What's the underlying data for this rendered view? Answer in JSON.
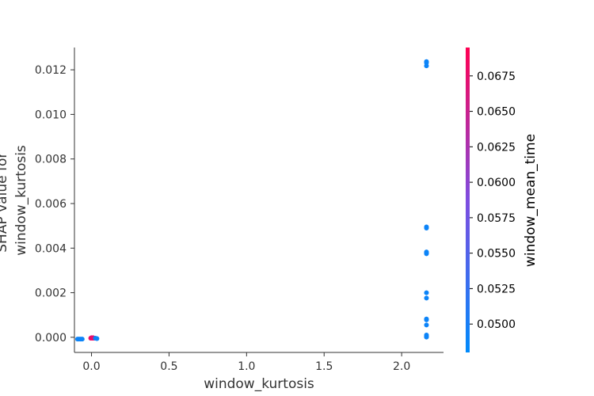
{
  "chart_data": {
    "type": "scatter",
    "xlabel": "window_kurtosis",
    "ylabel_lines": [
      "SHAP value for",
      "window_kurtosis"
    ],
    "xlim": [
      -0.11,
      2.27
    ],
    "ylim": [
      -0.00068,
      0.013
    ],
    "x_ticks": [
      0.0,
      0.5,
      1.0,
      1.5,
      2.0
    ],
    "x_tick_labels": [
      "0.0",
      "0.5",
      "1.0",
      "1.5",
      "2.0"
    ],
    "y_ticks": [
      0.0,
      0.002,
      0.004,
      0.006,
      0.008,
      0.01,
      0.012
    ],
    "y_tick_labels": [
      "0.000",
      "0.002",
      "0.004",
      "0.006",
      "0.008",
      "0.010",
      "0.012"
    ],
    "colorbar": {
      "label": "window_mean_time",
      "min": 0.048,
      "max": 0.0695,
      "ticks": [
        0.05,
        0.0525,
        0.055,
        0.0575,
        0.06,
        0.0625,
        0.065,
        0.0675
      ],
      "tick_labels": [
        "0.0500",
        "0.0525",
        "0.0550",
        "0.0575",
        "0.0600",
        "0.0625",
        "0.0650",
        "0.0675"
      ],
      "color_low": "#008afb",
      "color_mid": "#7e4de0",
      "color_high": "#ff0052"
    },
    "points": [
      {
        "x": 2.16,
        "y": 0.01237,
        "c": 0.049
      },
      {
        "x": 2.16,
        "y": 0.01232,
        "c": 0.049
      },
      {
        "x": 2.16,
        "y": 0.01218,
        "c": 0.049
      },
      {
        "x": 2.16,
        "y": 0.00495,
        "c": 0.049
      },
      {
        "x": 2.16,
        "y": 0.0049,
        "c": 0.049
      },
      {
        "x": 2.16,
        "y": 0.00383,
        "c": 0.049
      },
      {
        "x": 2.16,
        "y": 0.00378,
        "c": 0.049
      },
      {
        "x": 2.16,
        "y": 0.00375,
        "c": 0.049
      },
      {
        "x": 2.16,
        "y": 0.002,
        "c": 0.049
      },
      {
        "x": 2.16,
        "y": 0.00176,
        "c": 0.049
      },
      {
        "x": 2.16,
        "y": 0.00082,
        "c": 0.049
      },
      {
        "x": 2.16,
        "y": 0.00078,
        "c": 0.049
      },
      {
        "x": 2.16,
        "y": 0.00055,
        "c": 0.049
      },
      {
        "x": 2.16,
        "y": 0.0001,
        "c": 0.049
      },
      {
        "x": 2.16,
        "y": 4e-05,
        "c": 0.049
      },
      {
        "x": 2.16,
        "y": 1e-05,
        "c": 0.049
      },
      {
        "x": -0.09,
        "y": -8e-05,
        "c": 0.049
      },
      {
        "x": -0.08,
        "y": -8e-05,
        "c": 0.049
      },
      {
        "x": -0.07,
        "y": -8e-05,
        "c": 0.049
      },
      {
        "x": -0.06,
        "y": -8e-05,
        "c": 0.049
      },
      {
        "x": -0.005,
        "y": -4e-05,
        "c": 0.068
      },
      {
        "x": 0.0,
        "y": -2e-05,
        "c": 0.068
      },
      {
        "x": 0.005,
        "y": -4e-05,
        "c": 0.068
      },
      {
        "x": 0.01,
        "y": -2e-05,
        "c": 0.067
      },
      {
        "x": 0.015,
        "y": -4e-05,
        "c": 0.068
      },
      {
        "x": 0.025,
        "y": -4e-05,
        "c": 0.049
      },
      {
        "x": 0.035,
        "y": -6e-05,
        "c": 0.049
      }
    ]
  }
}
